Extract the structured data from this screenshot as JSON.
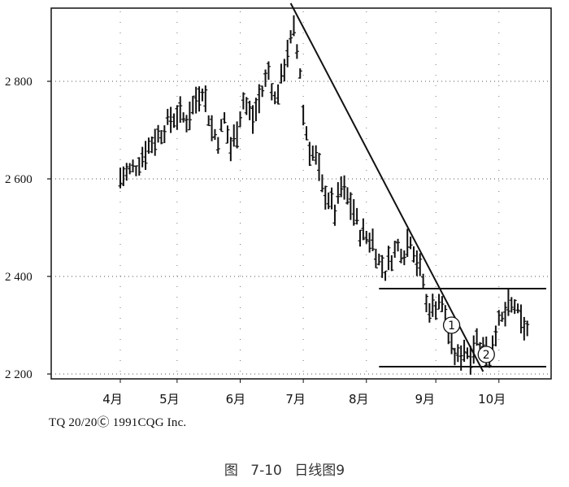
{
  "chart_data": {
    "type": "bar",
    "subtype": "OHLC daily price bars",
    "y_axis": {
      "ticks": [
        2200,
        2400,
        2600,
        2800
      ],
      "tick_labels": [
        "2 200",
        "2 400",
        "2 600",
        "2 800"
      ],
      "range": [
        2190,
        2950
      ]
    },
    "x_axis": {
      "tick_labels": [
        "4月",
        "5月",
        "6月",
        "7月",
        "8月",
        "9月",
        "10月"
      ],
      "index_range": [
        0,
        135
      ],
      "month_start_index": [
        0,
        18,
        38,
        58,
        78,
        100,
        120
      ],
      "month_label_index": [
        -2,
        16,
        37,
        56,
        76,
        97,
        117
      ]
    },
    "grid": true,
    "grid_style": "dotted",
    "trendline": {
      "from": {
        "x": 54,
        "y": 2960
      },
      "to": {
        "x": 115,
        "y": 2205
      }
    },
    "support_resistance": [
      {
        "y": 2375,
        "x_start": 82,
        "x_end": 135
      },
      {
        "y": 2215,
        "x_start": 82,
        "x_end": 135
      }
    ],
    "annotations": [
      {
        "label": "①",
        "x": 105,
        "y": 2300
      },
      {
        "label": "②",
        "x": 116,
        "y": 2240
      }
    ],
    "trend_points": [
      [
        0,
        2600
      ],
      [
        5,
        2625
      ],
      [
        9,
        2665
      ],
      [
        13,
        2695
      ],
      [
        16,
        2720
      ],
      [
        18,
        2730
      ],
      [
        21,
        2720
      ],
      [
        24,
        2760
      ],
      [
        26,
        2785
      ],
      [
        29,
        2700
      ],
      [
        31,
        2680
      ],
      [
        33,
        2720
      ],
      [
        35,
        2660
      ],
      [
        37,
        2700
      ],
      [
        39,
        2760
      ],
      [
        42,
        2720
      ],
      [
        45,
        2780
      ],
      [
        47,
        2820
      ],
      [
        49,
        2760
      ],
      [
        51,
        2800
      ],
      [
        53,
        2860
      ],
      [
        55,
        2900
      ],
      [
        56,
        2860
      ],
      [
        57,
        2820
      ],
      [
        58,
        2730
      ],
      [
        60,
        2660
      ],
      [
        62,
        2640
      ],
      [
        64,
        2580
      ],
      [
        66,
        2560
      ],
      [
        68,
        2530
      ],
      [
        70,
        2580
      ],
      [
        72,
        2560
      ],
      [
        74,
        2530
      ],
      [
        76,
        2490
      ],
      [
        78,
        2480
      ],
      [
        80,
        2470
      ],
      [
        82,
        2430
      ],
      [
        84,
        2410
      ],
      [
        86,
        2440
      ],
      [
        88,
        2460
      ],
      [
        90,
        2450
      ],
      [
        92,
        2480
      ],
      [
        94,
        2430
      ],
      [
        96,
        2390
      ],
      [
        97,
        2340
      ],
      [
        99,
        2330
      ],
      [
        101,
        2350
      ],
      [
        103,
        2320
      ],
      [
        105,
        2250
      ],
      [
        107,
        2230
      ],
      [
        109,
        2250
      ],
      [
        111,
        2240
      ],
      [
        113,
        2270
      ],
      [
        115,
        2260
      ],
      [
        117,
        2240
      ],
      [
        119,
        2290
      ],
      [
        121,
        2310
      ],
      [
        123,
        2330
      ],
      [
        125,
        2340
      ],
      [
        127,
        2300
      ],
      [
        129,
        2290
      ]
    ]
  },
  "footer": {
    "copyright": "TQ 20/20Ⓒ 1991CQG Inc."
  },
  "caption": {
    "text": "图   7-10   日线图9"
  }
}
